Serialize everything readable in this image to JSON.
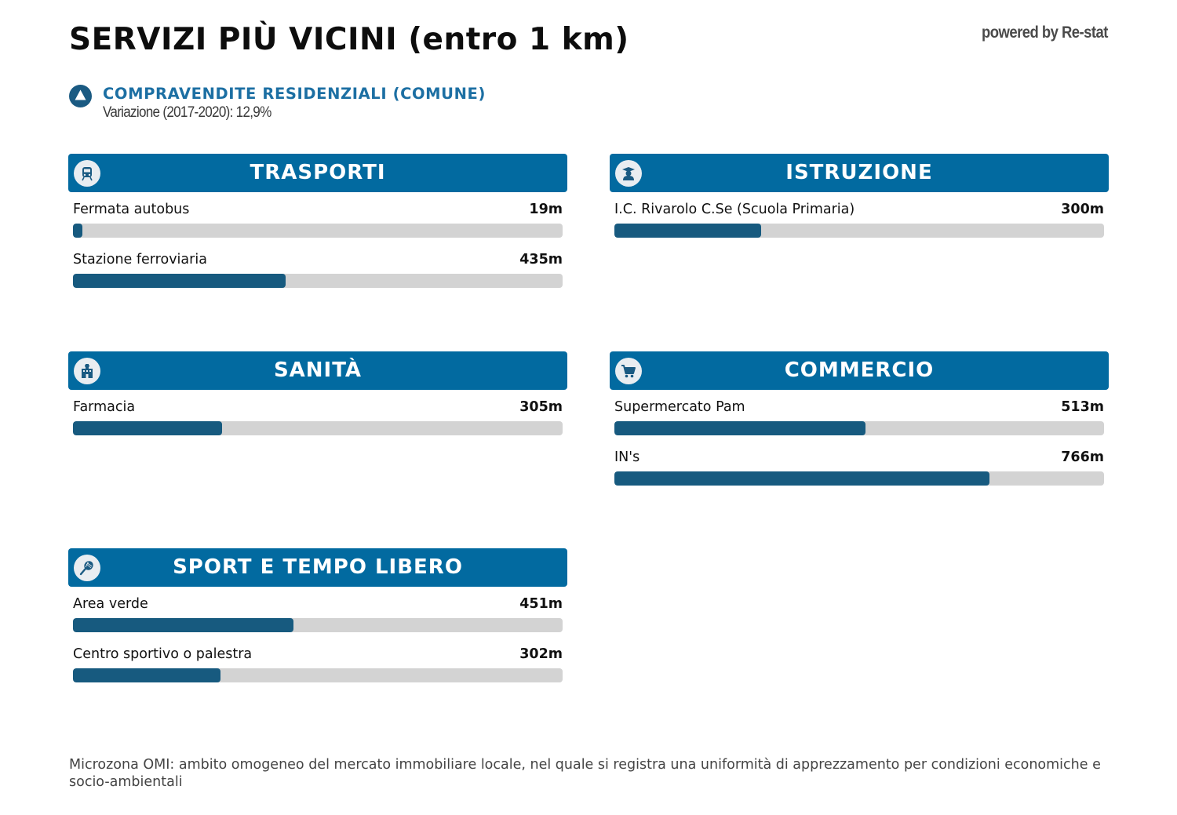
{
  "title": "SERVIZI PIÙ VICINI (entro 1 km)",
  "powered_by": "powered by Re-stat",
  "stat": {
    "icon": "triangle-up-icon",
    "heading": "COMPRAVENDITE RESIDENZIALI (COMUNE)",
    "subtext": "Variazione (2017-2020): 12,9%"
  },
  "max_distance_m": 1000,
  "colors": {
    "header_bg": "#026aa0",
    "bar_fill": "#175a7f",
    "bar_track": "#d3d3d3",
    "heading_accent": "#1c6fa3"
  },
  "categories": {
    "trasporti": {
      "title": "TRASPORTI",
      "icon": "train-icon",
      "services": [
        {
          "name": "Fermata autobus",
          "distance": "19m",
          "meters": 19
        },
        {
          "name": "Stazione ferroviaria",
          "distance": "435m",
          "meters": 435
        }
      ]
    },
    "istruzione": {
      "title": "ISTRUZIONE",
      "icon": "student-icon",
      "services": [
        {
          "name": "I.C. Rivarolo C.Se (Scuola Primaria)",
          "distance": "300m",
          "meters": 300
        }
      ]
    },
    "sanita": {
      "title": "SANITÀ",
      "icon": "hospital-icon",
      "services": [
        {
          "name": "Farmacia",
          "distance": "305m",
          "meters": 305
        }
      ]
    },
    "commercio": {
      "title": "COMMERCIO",
      "icon": "shopping-cart-icon",
      "services": [
        {
          "name": "Supermercato Pam",
          "distance": "513m",
          "meters": 513
        },
        {
          "name": "IN's",
          "distance": "766m",
          "meters": 766
        }
      ]
    },
    "sport": {
      "title": "SPORT E TEMPO LIBERO",
      "icon": "tennis-racket-icon",
      "services": [
        {
          "name": "Area verde",
          "distance": "451m",
          "meters": 451
        },
        {
          "name": "Centro sportivo o palestra",
          "distance": "302m",
          "meters": 302
        }
      ]
    }
  },
  "footnote": "Microzona OMI: ambito omogeneo del mercato immobiliare locale, nel quale si registra una uniformità di apprezzamento per condizioni economiche e socio-ambientali"
}
